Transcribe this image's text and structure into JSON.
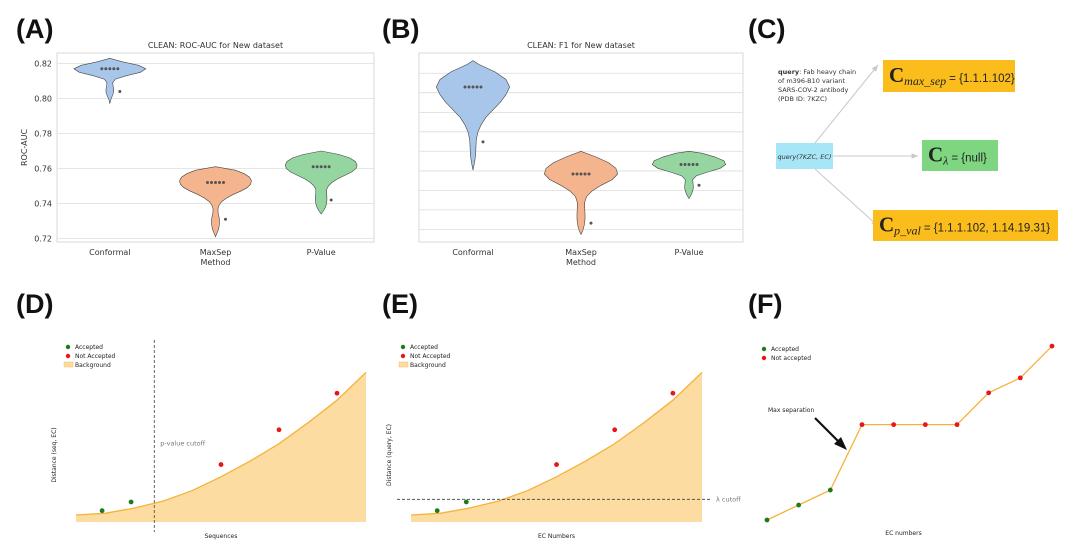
{
  "panel_labels": [
    "(A)",
    "(B)",
    "(C)",
    "(D)",
    "(E)",
    "(F)"
  ],
  "colors": {
    "conformal": "#a8c6ea",
    "maxsep": "#f3b48e",
    "pvalue": "#95d6a0",
    "accepted": "#1f7a1f",
    "not_accepted": "#e8161b",
    "background": "#fddca2",
    "curve": "#f5b23c",
    "box_orange": "#fbbd1c",
    "box_green": "#7ed681",
    "box_blue": "#a7e6f6"
  },
  "chart_data": [
    {
      "id": "A",
      "type": "violin",
      "title": "CLEAN: ROC-AUC for New dataset",
      "xlabel": "Method",
      "ylabel": "ROC-AUC",
      "ylim": [
        0.718,
        0.826
      ],
      "yticks": [
        0.72,
        0.74,
        0.76,
        0.78,
        0.8,
        0.82
      ],
      "ytick_labels": [
        "0.72",
        "0.74",
        "0.76",
        "0.78",
        "0.80",
        "0.82"
      ],
      "categories": [
        "Conformal",
        "MaxSep",
        "P-Value"
      ],
      "grid": true,
      "series": [
        {
          "points": [
            0.817,
            0.817,
            0.817,
            0.817,
            0.817,
            0.804
          ],
          "shape": [
            [
              0.797,
              0
            ],
            [
              0.799,
              0.02
            ],
            [
              0.801,
              0.06
            ],
            [
              0.803,
              0.1
            ],
            [
              0.805,
              0.11
            ],
            [
              0.807,
              0.09
            ],
            [
              0.809,
              0.08
            ],
            [
              0.811,
              0.15
            ],
            [
              0.813,
              0.45
            ],
            [
              0.815,
              0.85
            ],
            [
              0.817,
              1
            ],
            [
              0.819,
              0.8
            ],
            [
              0.821,
              0.35
            ],
            [
              0.823,
              0
            ]
          ]
        },
        {
          "points": [
            0.752,
            0.752,
            0.752,
            0.752,
            0.752,
            0.731
          ],
          "shape": [
            [
              0.721,
              0
            ],
            [
              0.723,
              0.04
            ],
            [
              0.725,
              0.08
            ],
            [
              0.727,
              0.1
            ],
            [
              0.729,
              0.11
            ],
            [
              0.731,
              0.11
            ],
            [
              0.733,
              0.09
            ],
            [
              0.735,
              0.07
            ],
            [
              0.737,
              0.07
            ],
            [
              0.739,
              0.1
            ],
            [
              0.741,
              0.17
            ],
            [
              0.743,
              0.3
            ],
            [
              0.745,
              0.48
            ],
            [
              0.747,
              0.7
            ],
            [
              0.749,
              0.88
            ],
            [
              0.751,
              0.98
            ],
            [
              0.753,
              1
            ],
            [
              0.755,
              0.95
            ],
            [
              0.757,
              0.8
            ],
            [
              0.759,
              0.55
            ],
            [
              0.761,
              0
            ]
          ]
        },
        {
          "points": [
            0.761,
            0.761,
            0.761,
            0.761,
            0.761,
            0.742
          ],
          "shape": [
            [
              0.734,
              0
            ],
            [
              0.736,
              0.07
            ],
            [
              0.738,
              0.12
            ],
            [
              0.74,
              0.15
            ],
            [
              0.742,
              0.16
            ],
            [
              0.744,
              0.16
            ],
            [
              0.746,
              0.15
            ],
            [
              0.748,
              0.15
            ],
            [
              0.75,
              0.2
            ],
            [
              0.752,
              0.3
            ],
            [
              0.754,
              0.45
            ],
            [
              0.756,
              0.65
            ],
            [
              0.758,
              0.85
            ],
            [
              0.76,
              0.97
            ],
            [
              0.762,
              1
            ],
            [
              0.764,
              0.95
            ],
            [
              0.766,
              0.8
            ],
            [
              0.768,
              0.5
            ],
            [
              0.77,
              0
            ]
          ]
        }
      ]
    },
    {
      "id": "B",
      "type": "violin",
      "title": "CLEAN: F1 for New dataset",
      "xlabel": "Method",
      "ylabel": "",
      "ylim": [
        0.0,
        1.0
      ],
      "yticks": [
        0.066,
        0.17,
        0.272,
        0.376,
        0.48,
        0.583,
        0.686,
        0.79,
        0.893
      ],
      "ytick_labels": [],
      "categories": [
        "Conformal",
        "MaxSep",
        "P-Value"
      ],
      "grid": true,
      "series": [
        {
          "points": [
            0.82,
            0.82,
            0.82,
            0.82,
            0.82,
            0.53
          ],
          "shape": [
            [
              0.38,
              0
            ],
            [
              0.42,
              0.04
            ],
            [
              0.46,
              0.07
            ],
            [
              0.5,
              0.08
            ],
            [
              0.54,
              0.09
            ],
            [
              0.58,
              0.13
            ],
            [
              0.62,
              0.22
            ],
            [
              0.66,
              0.35
            ],
            [
              0.7,
              0.55
            ],
            [
              0.74,
              0.75
            ],
            [
              0.78,
              0.9
            ],
            [
              0.82,
              1
            ],
            [
              0.86,
              0.9
            ],
            [
              0.9,
              0.6
            ],
            [
              0.94,
              0.15
            ],
            [
              0.96,
              0
            ]
          ]
        },
        {
          "points": [
            0.36,
            0.36,
            0.36,
            0.36,
            0.36,
            0.1
          ],
          "shape": [
            [
              0.04,
              0
            ],
            [
              0.06,
              0.05
            ],
            [
              0.09,
              0.09
            ],
            [
              0.12,
              0.11
            ],
            [
              0.15,
              0.11
            ],
            [
              0.18,
              0.1
            ],
            [
              0.21,
              0.1
            ],
            [
              0.24,
              0.15
            ],
            [
              0.27,
              0.3
            ],
            [
              0.3,
              0.55
            ],
            [
              0.33,
              0.85
            ],
            [
              0.36,
              1
            ],
            [
              0.39,
              0.95
            ],
            [
              0.42,
              0.75
            ],
            [
              0.45,
              0.4
            ],
            [
              0.48,
              0
            ]
          ]
        },
        {
          "points": [
            0.41,
            0.41,
            0.41,
            0.41,
            0.41,
            0.3
          ],
          "shape": [
            [
              0.23,
              0
            ],
            [
              0.25,
              0.06
            ],
            [
              0.27,
              0.1
            ],
            [
              0.29,
              0.12
            ],
            [
              0.31,
              0.11
            ],
            [
              0.33,
              0.1
            ],
            [
              0.35,
              0.2
            ],
            [
              0.37,
              0.5
            ],
            [
              0.39,
              0.85
            ],
            [
              0.41,
              1
            ],
            [
              0.43,
              0.95
            ],
            [
              0.45,
              0.7
            ],
            [
              0.47,
              0.35
            ],
            [
              0.48,
              0
            ]
          ]
        }
      ]
    },
    {
      "id": "D",
      "type": "area",
      "xlabel": "Sequences",
      "ylabel": "Distance (seq, EC)",
      "legend": [
        "Accepted",
        "Not Accepted",
        "Background"
      ],
      "legend_loc": "top-left",
      "xlim": [
        0,
        1
      ],
      "ylim": [
        0,
        1
      ],
      "curve": [
        [
          0,
          0.04
        ],
        [
          0.1,
          0.05
        ],
        [
          0.2,
          0.08
        ],
        [
          0.3,
          0.12
        ],
        [
          0.4,
          0.18
        ],
        [
          0.5,
          0.26
        ],
        [
          0.6,
          0.35
        ],
        [
          0.7,
          0.45
        ],
        [
          0.8,
          0.57
        ],
        [
          0.9,
          0.7
        ],
        [
          1.0,
          0.86
        ]
      ],
      "accepted_points": [
        [
          0.09,
          0.065
        ],
        [
          0.19,
          0.115
        ]
      ],
      "not_accepted_points": [
        [
          0.5,
          0.33
        ],
        [
          0.7,
          0.53
        ],
        [
          0.9,
          0.74
        ]
      ],
      "cutoff": {
        "orientation": "vertical",
        "value": 0.27,
        "label": "p-value cutoff"
      }
    },
    {
      "id": "E",
      "type": "area",
      "xlabel": "EC Numbers",
      "ylabel": "Distance (query, EC)",
      "legend": [
        "Accepted",
        "Not Accepted",
        "Background"
      ],
      "legend_loc": "top-left",
      "xlim": [
        0,
        1
      ],
      "ylim": [
        0,
        1
      ],
      "curve": [
        [
          0,
          0.04
        ],
        [
          0.1,
          0.05
        ],
        [
          0.2,
          0.08
        ],
        [
          0.3,
          0.12
        ],
        [
          0.4,
          0.18
        ],
        [
          0.5,
          0.26
        ],
        [
          0.6,
          0.35
        ],
        [
          0.7,
          0.45
        ],
        [
          0.8,
          0.57
        ],
        [
          0.9,
          0.7
        ],
        [
          1.0,
          0.86
        ]
      ],
      "accepted_points": [
        [
          0.09,
          0.065
        ],
        [
          0.19,
          0.115
        ]
      ],
      "not_accepted_points": [
        [
          0.5,
          0.33
        ],
        [
          0.7,
          0.53
        ],
        [
          0.9,
          0.74
        ]
      ],
      "cutoff": {
        "orientation": "horizontal",
        "value": 0.13,
        "label": "λ cutoff"
      }
    },
    {
      "id": "F",
      "type": "line",
      "xlabel": "EC numbers",
      "ylabel": "",
      "legend": [
        "Accepted",
        "Not accepted"
      ],
      "legend_loc": "top-left",
      "xlim": [
        0,
        9
      ],
      "ylim": [
        0,
        1
      ],
      "points": [
        [
          0,
          0.0
        ],
        [
          1,
          0.08
        ],
        [
          2,
          0.16
        ],
        [
          3,
          0.51
        ],
        [
          4,
          0.51
        ],
        [
          5,
          0.51
        ],
        [
          6,
          0.51
        ],
        [
          7,
          0.68
        ],
        [
          8,
          0.76
        ],
        [
          9,
          0.93
        ]
      ],
      "accepted_count": 3,
      "annotation": "Max separation"
    }
  ],
  "panel_c": {
    "query_label": "query",
    "query_desc": ": Fab heavy chain of m396-B10 variant SARS-COV-2 antibody (PDB ID: 7KZC)",
    "query_lines": [
      ": Fab heavy chain",
      "of m396-B10 variant",
      "SARS-COV-2 antibody",
      "(PDB ID: 7KZC)"
    ],
    "center_box": "query(7KZC, EC)",
    "outputs": [
      {
        "symbol": "C",
        "subscript": "max_sep",
        "value": "= {1.1.1.102}"
      },
      {
        "symbol": "C",
        "subscript": "λ",
        "value": "= {null}"
      },
      {
        "symbol": "C",
        "subscript": "p_val",
        "value": "= {1.1.1.102, 1.14.19.31}"
      }
    ]
  }
}
